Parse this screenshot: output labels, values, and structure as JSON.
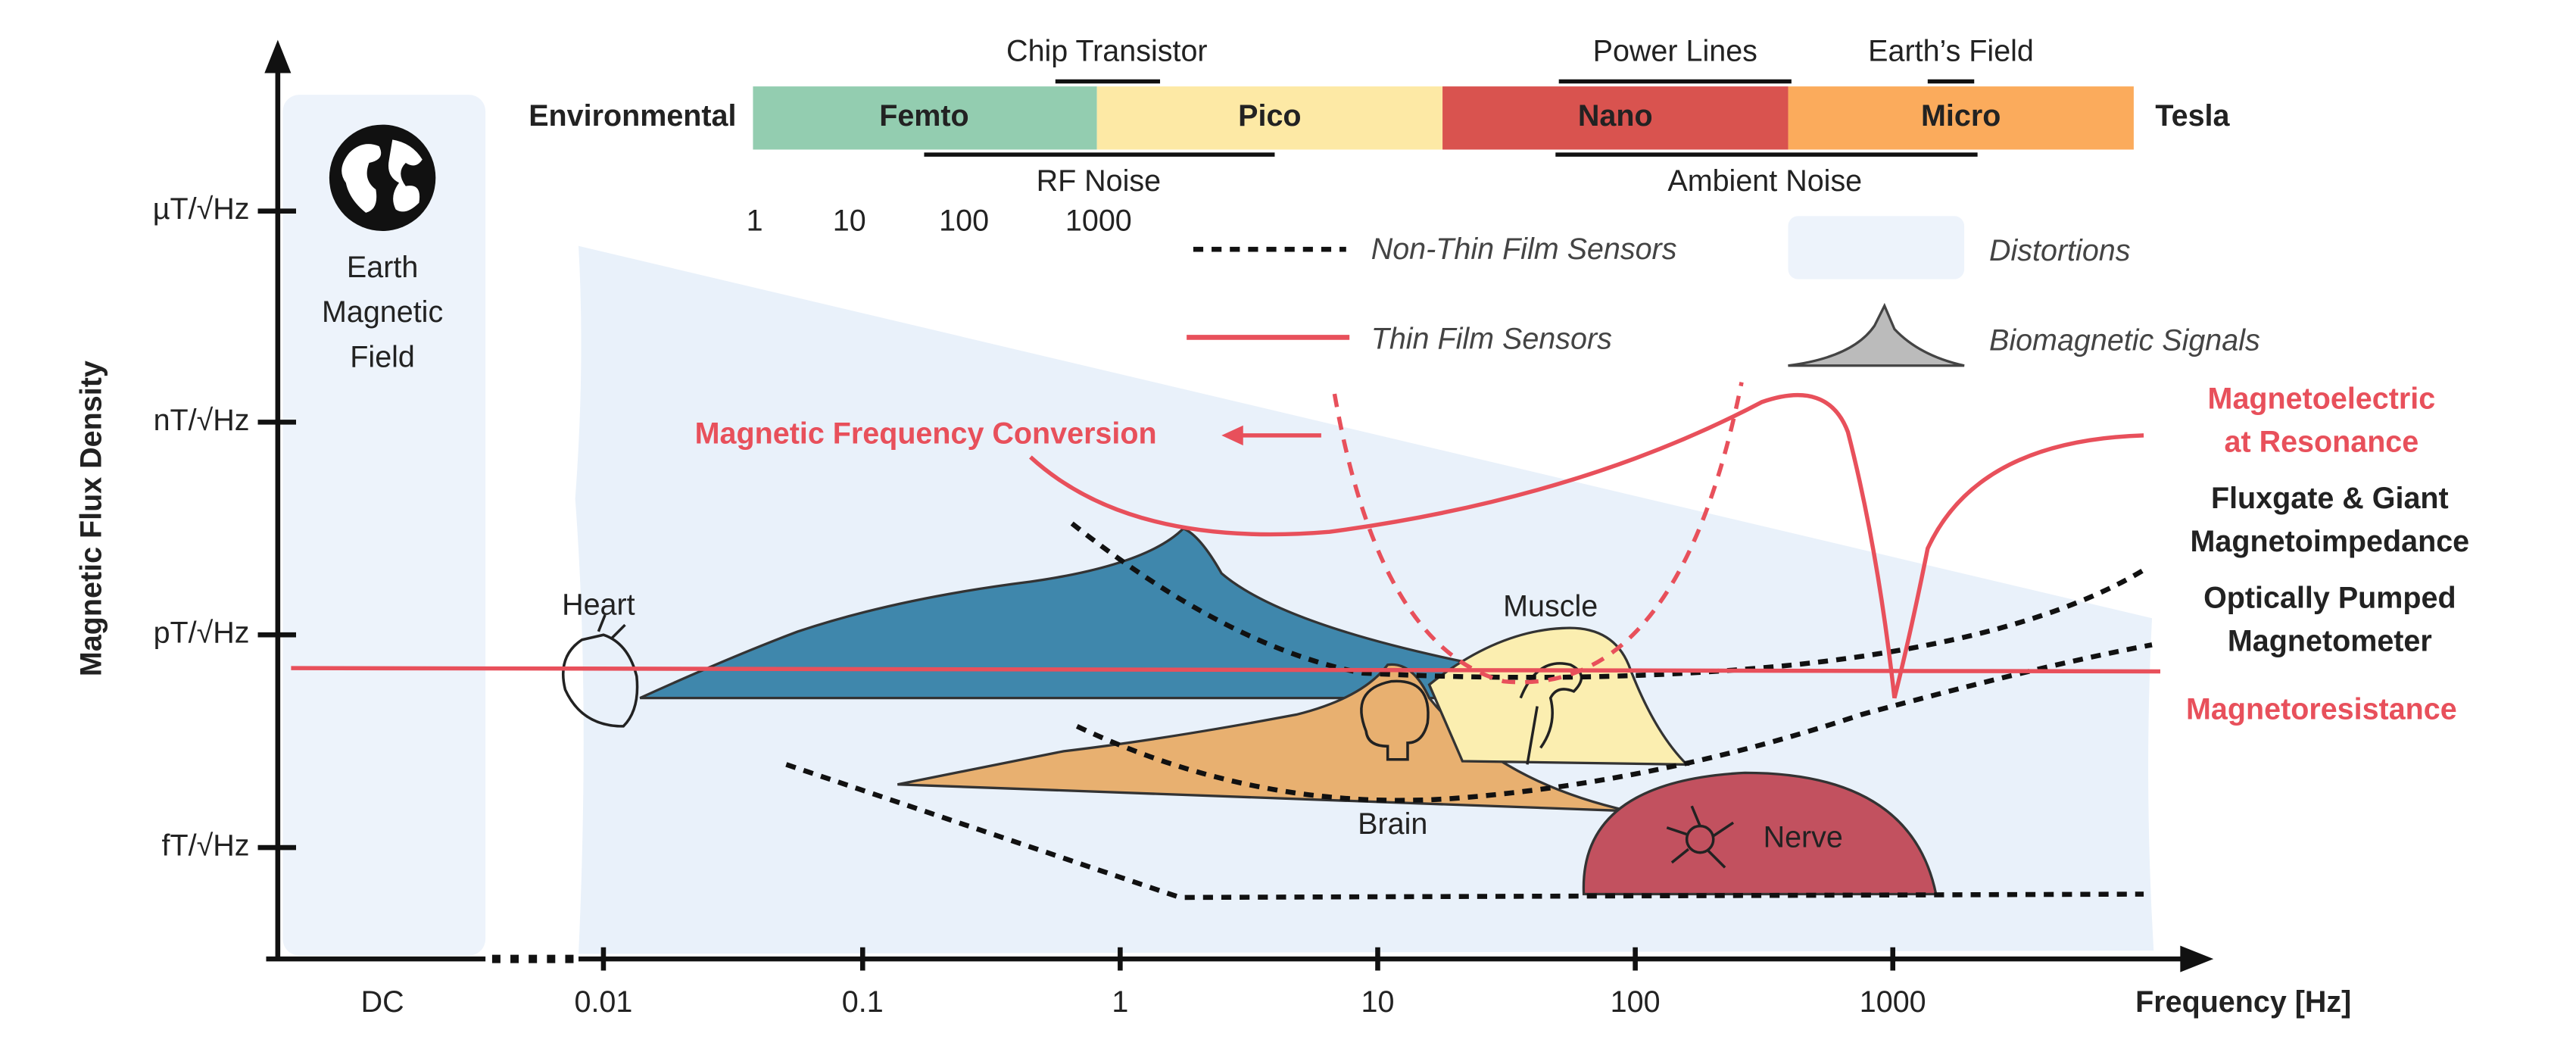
{
  "y_axis": {
    "title": "Magnetic Flux Density",
    "ticks": [
      "µT/√Hz",
      "nT/√Hz",
      "pT/√Hz",
      "fT/√Hz"
    ]
  },
  "x_axis": {
    "title": "Frequency [Hz]",
    "ticks": [
      "DC",
      "0.01",
      "0.1",
      "1",
      "10",
      "100",
      "1000"
    ]
  },
  "earth_field": {
    "lines": [
      "Earth",
      "Magnetic",
      "Field"
    ]
  },
  "tesla_scale": {
    "left_label": "Environmental",
    "right_label": "Tesla",
    "segments": [
      "Femto",
      "Pico",
      "Nano",
      "Micro"
    ],
    "top_noise": [
      "Chip Transistor",
      "Power Lines",
      "Earth’s Field"
    ],
    "bottom_noise": [
      "RF Noise",
      "Ambient Noise"
    ],
    "numbers": [
      "1",
      "10",
      "100",
      "1000"
    ]
  },
  "legend": [
    "Non-Thin Film Sensors",
    "Thin Film Sensors",
    "Distortions",
    "Biomagnetic Signals"
  ],
  "conversion_label": "Magnetic Frequency Conversion",
  "sensors": [
    {
      "lines": [
        "Magnetoelectric",
        "at Resonance"
      ]
    },
    {
      "lines": [
        "Fluxgate & Giant",
        "Magnetoimpedance"
      ]
    },
    {
      "lines": [
        "Optically Pumped",
        "Magnetometer"
      ]
    },
    {
      "lines": [
        "Magnetoresistance"
      ]
    }
  ],
  "signals": [
    "Heart",
    "Muscle",
    "Brain",
    "Nerve"
  ]
}
